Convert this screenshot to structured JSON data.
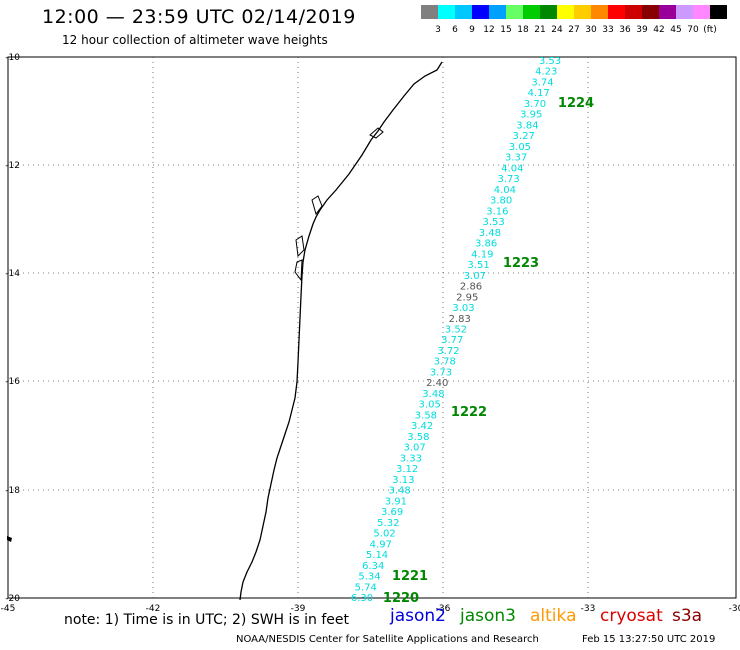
{
  "header": {
    "title": "12:00 — 23:59 UTC 02/14/2019",
    "subtitle": "12 hour collection of altimeter wave heights"
  },
  "legend": {
    "colors": [
      "#808080",
      "#00ffff",
      "#00c8ff",
      "#0000ff",
      "#00a0ff",
      "#66ff66",
      "#00cc00",
      "#008800",
      "#ffff00",
      "#ffcc00",
      "#ff8800",
      "#ff0000",
      "#cc0000",
      "#880000",
      "#990099",
      "#cc99ff",
      "#ff88ff",
      "#000000"
    ],
    "labels": [
      "3",
      "6",
      "9",
      "12",
      "15",
      "18",
      "21",
      "24",
      "27",
      "30",
      "33",
      "36",
      "39",
      "42",
      "45",
      "70",
      "(ft)"
    ]
  },
  "axes": {
    "lon_labels": [
      "-45",
      "-42",
      "-39",
      "-36",
      "-33",
      "-30"
    ],
    "lat_labels": [
      "-10",
      "-12",
      "-14",
      "-16",
      "-18",
      "-20"
    ]
  },
  "track": {
    "passes": [
      {
        "label": "1224"
      },
      {
        "label": "1223"
      },
      {
        "label": "1222"
      },
      {
        "label": "1221"
      },
      {
        "label": "1220"
      }
    ],
    "values": [
      "3.53",
      "4.23",
      "3.74",
      "4.17",
      "3.70",
      "3.95",
      "3.84",
      "3.27",
      "3.05",
      "3.37",
      "4.04",
      "3.73",
      "4.04",
      "3.80",
      "3.16",
      "3.53",
      "3.48",
      "3.86",
      "4.19",
      "3.51",
      "3.07",
      "2.86",
      "2.95",
      "3.03",
      "2.83",
      "3.52",
      "3.77",
      "3.72",
      "3.78",
      "3.73",
      "2.40",
      "3.48",
      "3.05",
      "3.58",
      "3.42",
      "3.58",
      "3.07",
      "3.33",
      "3.12",
      "3.13",
      "3.48",
      "3.91",
      "3.69",
      "5.32",
      "5.02",
      "4.97",
      "5.14",
      "6.34",
      "5.34",
      "5.74",
      "6.30"
    ],
    "value_colors": [
      "#00dddd",
      "#00dddd",
      "#00dddd",
      "#00dddd",
      "#00dddd",
      "#00dddd",
      "#00dddd",
      "#00dddd",
      "#00dddd",
      "#00dddd",
      "#00dddd",
      "#00dddd",
      "#00dddd",
      "#00dddd",
      "#00dddd",
      "#00dddd",
      "#00dddd",
      "#00dddd",
      "#00dddd",
      "#00dddd",
      "#00dddd",
      "#555555",
      "#555555",
      "#00dddd",
      "#555555",
      "#00dddd",
      "#00dddd",
      "#00dddd",
      "#00dddd",
      "#00dddd",
      "#555555",
      "#00dddd",
      "#00dddd",
      "#00dddd",
      "#00dddd",
      "#00dddd",
      "#00dddd",
      "#00dddd",
      "#00dddd",
      "#00dddd",
      "#00dddd",
      "#00dddd",
      "#00dddd",
      "#00dddd",
      "#00dddd",
      "#00dddd",
      "#00dddd",
      "#00dddd",
      "#00dddd",
      "#00dddd",
      "#00dddd"
    ]
  },
  "footer": {
    "note": "note: 1) Time is in UTC; 2) SWH is in feet",
    "satellites": [
      {
        "name": "jason2",
        "color": "#0000dd"
      },
      {
        "name": "jason3",
        "color": "#008800"
      },
      {
        "name": "altika",
        "color": "#ff9900"
      },
      {
        "name": "cryosat",
        "color": "#dd0000"
      },
      {
        "name": "s3a",
        "color": "#880000"
      }
    ],
    "credit": "NOAA/NESDIS Center for Satellite Applications and Research",
    "timestamp": "Feb 15 13:27:50 UTC 2019"
  }
}
